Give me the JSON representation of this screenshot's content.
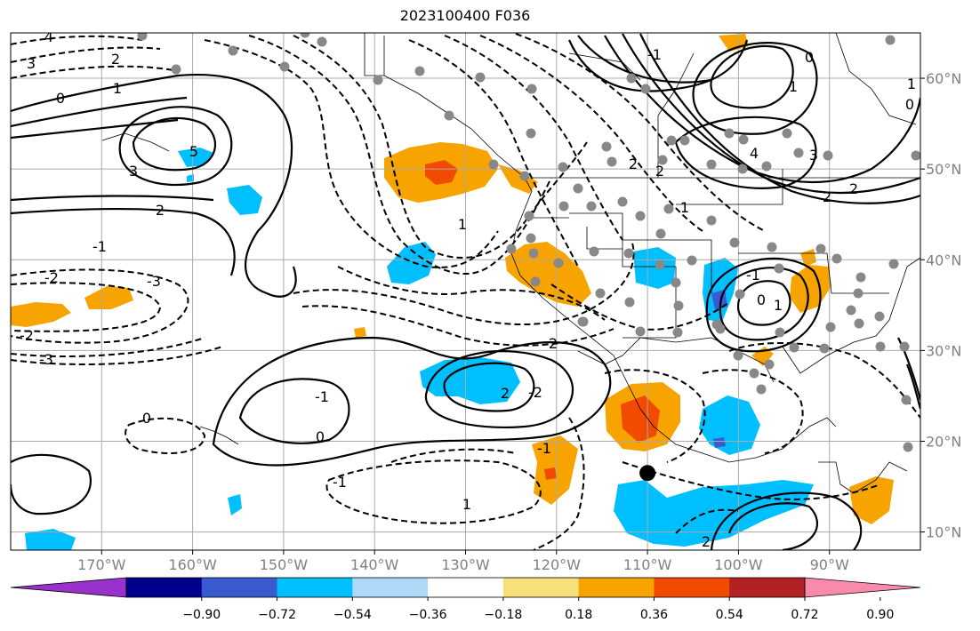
{
  "title": "2023100400 F036",
  "map": {
    "lon_range": [
      -180,
      -80
    ],
    "lat_range": [
      8,
      65
    ],
    "lon_ticks": [
      "170°W",
      "160°W",
      "150°W",
      "140°W",
      "130°W",
      "120°W",
      "110°W",
      "100°W",
      "90°W"
    ],
    "lat_ticks": [
      "60°N",
      "50°N",
      "40°N",
      "30°N",
      "20°N",
      "10°N"
    ],
    "grid": true
  },
  "colorbar": {
    "tick_labels": [
      "−0.90",
      "−0.72",
      "−0.54",
      "−0.36",
      "−0.18",
      "0.18",
      "0.36",
      "0.54",
      "0.72",
      "0.90"
    ],
    "colors": [
      "#9932cc",
      "#00008b",
      "#3a5bd0",
      "#00bfff",
      "#add8f7",
      "#ffffff",
      "#f7e07a",
      "#f7a300",
      "#f24a00",
      "#b22222",
      "#f88aac"
    ],
    "extend": "both"
  },
  "contour_labels": [
    "4",
    "3",
    "2",
    "1",
    "0",
    "5",
    "3",
    "2",
    "-1",
    "-2",
    "-3",
    "-2",
    "-3",
    "1",
    "2",
    "-2",
    "2",
    "-1",
    "0",
    "-1",
    "0",
    "-1",
    "1",
    "2",
    "3",
    "4",
    "2",
    "1",
    "0",
    "-1",
    "2",
    "2",
    "1",
    "0",
    "1",
    "2",
    "-1",
    "0",
    "1"
  ],
  "marker": {
    "lon": -110,
    "lat": 16.5
  }
}
